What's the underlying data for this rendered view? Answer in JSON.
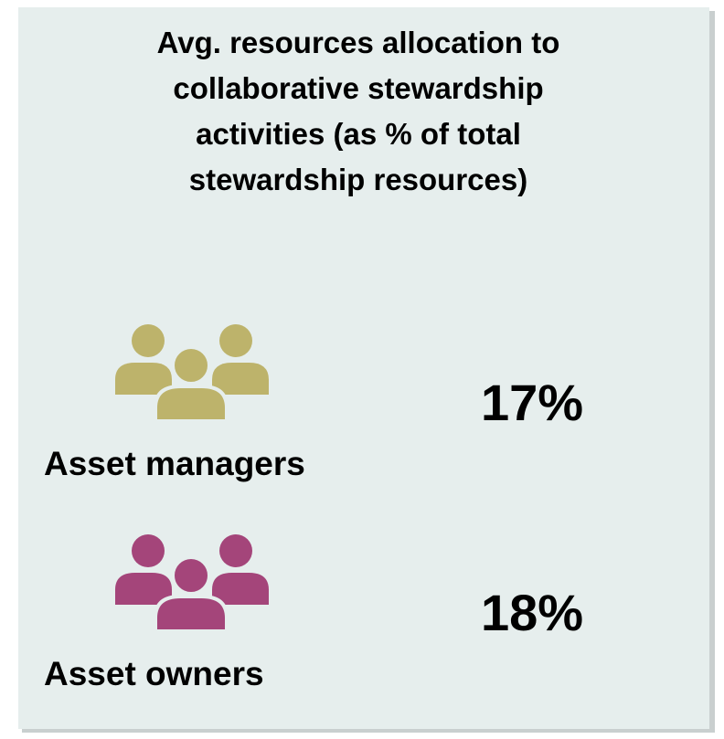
{
  "title_lines": [
    "Avg. resources allocation to",
    "collaborative stewardship",
    "activities (as % of total",
    "stewardship resources)"
  ],
  "items": [
    {
      "label": "Asset managers",
      "value": "17%",
      "color": "#bdb36b"
    },
    {
      "label": "Asset owners",
      "value": "18%",
      "color": "#a4457a"
    }
  ]
}
